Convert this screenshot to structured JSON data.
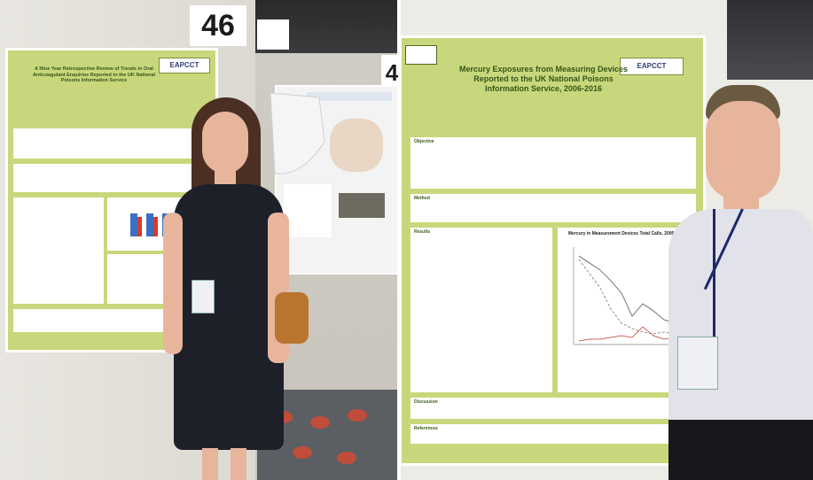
{
  "booth_numbers": {
    "left": "46",
    "right": "4"
  },
  "left_poster": {
    "title": "A Nine Year Retrospective Review of Trends in Oral Anticoagulant Enquiries Reported to the UK National Poisons Information Service",
    "logo": "EAPCCT"
  },
  "right_poster": {
    "title": "Mercury Exposures from Measuring Devices Reported to the UK National Poisons Information Service, 2006-2016",
    "logo": "EAPCCT",
    "sections": [
      "Objective",
      "Method",
      "Results",
      "Discussion",
      "References"
    ],
    "chart_title": "Mercury in Measurement Devices Total Calls, 2006-2016"
  },
  "colors": {
    "poster_green": "#c9d77c",
    "title_green": "#355518"
  }
}
